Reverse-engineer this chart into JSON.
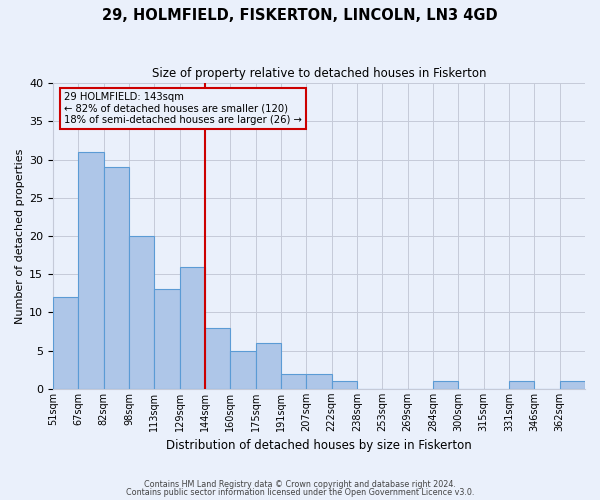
{
  "title": "29, HOLMFIELD, FISKERTON, LINCOLN, LN3 4GD",
  "subtitle": "Size of property relative to detached houses in Fiskerton",
  "xlabel": "Distribution of detached houses by size in Fiskerton",
  "ylabel": "Number of detached properties",
  "bar_heights": [
    12,
    31,
    29,
    20,
    13,
    16,
    8,
    5,
    6,
    2,
    2,
    1,
    0,
    0,
    0,
    1,
    0,
    0,
    1,
    0,
    1
  ],
  "tick_labels": [
    "51sqm",
    "67sqm",
    "82sqm",
    "98sqm",
    "113sqm",
    "129sqm",
    "144sqm",
    "160sqm",
    "175sqm",
    "191sqm",
    "207sqm",
    "222sqm",
    "238sqm",
    "253sqm",
    "269sqm",
    "284sqm",
    "300sqm",
    "315sqm",
    "331sqm",
    "346sqm",
    "362sqm"
  ],
  "bar_color": "#aec6e8",
  "bar_edge_color": "#5b9bd5",
  "bg_color": "#eaf0fb",
  "grid_color": "#c5cad8",
  "ref_bar_index": 6,
  "ref_line_color": "#cc0000",
  "annotation_box_text": "29 HOLMFIELD: 143sqm\n← 82% of detached houses are smaller (120)\n18% of semi-detached houses are larger (26) →",
  "annotation_box_color": "#cc0000",
  "ylim": [
    0,
    40
  ],
  "yticks": [
    0,
    5,
    10,
    15,
    20,
    25,
    30,
    35,
    40
  ],
  "footer_line1": "Contains HM Land Registry data © Crown copyright and database right 2024.",
  "footer_line2": "Contains public sector information licensed under the Open Government Licence v3.0."
}
